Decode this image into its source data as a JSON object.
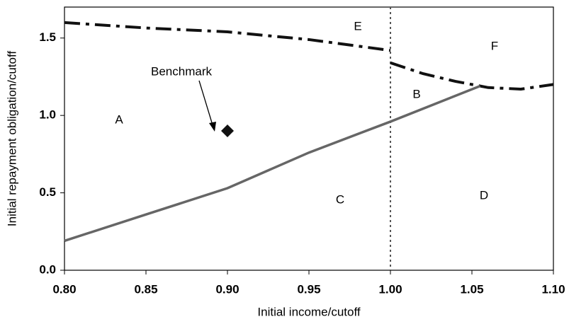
{
  "chart_data": {
    "type": "line",
    "x_label": "Initial income/cutoff",
    "y_label": "Initial repayment obligation/cutoff",
    "xlim": [
      0.8,
      1.1
    ],
    "ylim": [
      0,
      1.7
    ],
    "xticks": [
      {
        "value": 0.8,
        "label": "0.80"
      },
      {
        "value": 0.85,
        "label": "0.85"
      },
      {
        "value": 0.9,
        "label": "0.90"
      },
      {
        "value": 0.95,
        "label": "0.95"
      },
      {
        "value": 1.0,
        "label": "1.00"
      },
      {
        "value": 1.05,
        "label": "1.05"
      },
      {
        "value": 1.1,
        "label": "1.10"
      }
    ],
    "yticks": [
      {
        "value": 0,
        "label": "0.0"
      },
      {
        "value": 0.5,
        "label": "0.5"
      },
      {
        "value": 1.0,
        "label": "1.0"
      },
      {
        "value": 1.5,
        "label": "1.5"
      }
    ],
    "vline": 1.0,
    "series": [
      {
        "color": "#111111",
        "style": "dashdot",
        "x": [
          0.8,
          0.85,
          0.9,
          0.95,
          1.0
        ],
        "values": [
          1.6,
          1.565,
          1.54,
          1.49,
          1.42
        ]
      },
      {
        "color": "#111111",
        "style": "dashdot",
        "x": [
          1.0,
          1.02,
          1.04,
          1.06,
          1.08,
          1.1
        ],
        "values": [
          1.34,
          1.27,
          1.22,
          1.18,
          1.17,
          1.2
        ]
      },
      {
        "color": "#666666",
        "style": "solid",
        "x": [
          0.8,
          0.85,
          0.9,
          0.95,
          1.0,
          1.055
        ],
        "values": [
          0.19,
          0.36,
          0.53,
          0.76,
          0.96,
          1.19
        ]
      }
    ],
    "points": [
      {
        "x": 0.9,
        "y": 0.9,
        "color": "#111111"
      }
    ],
    "annotations": [
      "E",
      "F",
      "B",
      "A",
      "C",
      "D",
      "Benchmark"
    ]
  }
}
